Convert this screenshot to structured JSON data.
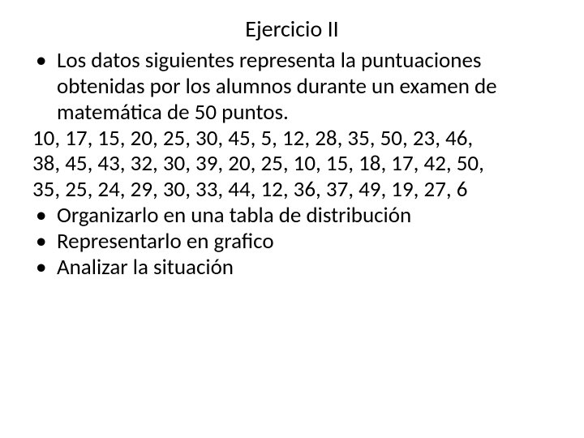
{
  "title": "Ejercicio II",
  "bullets": {
    "intro": "Los datos siguientes representa la puntuaciones obtenidas por los alumnos durante un examen de matemática de 50 puntos.",
    "task1": "Organizarlo en una tabla de distribución",
    "task2": "Representarlo en grafico",
    "task3": "Analizar la situación"
  },
  "data_lines": {
    "line1": "10, 17, 15, 20, 25, 30, 45, 5, 12, 28, 35, 50, 23, 46,",
    "line2": "38, 45, 43, 32, 30, 39, 20, 25, 10, 15, 18, 17, 42, 50,",
    "line3": "35, 25, 24, 29, 30, 33, 44, 12, 36, 37, 49, 19, 27, 6"
  },
  "style": {
    "background_color": "#ffffff",
    "text_color": "#000000",
    "title_fontsize": 28,
    "body_fontsize": 27,
    "font_family": "Calibri",
    "bullet_char": "•"
  }
}
